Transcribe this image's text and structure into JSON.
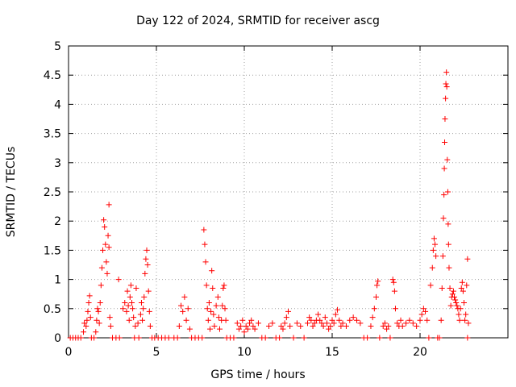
{
  "chart_data": {
    "type": "scatter",
    "title": "Day 122 of 2024, SRMTID for receiver ascg",
    "xlabel": "GPS time / hours",
    "ylabel": "SRMTID / TECUs",
    "xlim": [
      0,
      25
    ],
    "ylim": [
      0,
      5
    ],
    "xticks": [
      "0",
      "5",
      "10",
      "15",
      "20"
    ],
    "yticks": [
      "0",
      "0.5",
      "1",
      "1.5",
      "2",
      "2.5",
      "3",
      "3.5",
      "4",
      "4.5",
      "5"
    ],
    "grid": true,
    "marker": "+",
    "series": [
      {
        "name": "SRMTID",
        "color": "#ff0000",
        "points": [
          [
            0.1,
            0
          ],
          [
            0.25,
            0
          ],
          [
            0.4,
            0
          ],
          [
            0.55,
            0
          ],
          [
            0.7,
            0
          ],
          [
            0.85,
            0.1
          ],
          [
            0.9,
            0.25
          ],
          [
            1.0,
            0.2
          ],
          [
            1.05,
            0.3
          ],
          [
            1.1,
            0.45
          ],
          [
            1.15,
            0.6
          ],
          [
            1.2,
            0.72
          ],
          [
            1.25,
            0.35
          ],
          [
            1.3,
            0
          ],
          [
            1.45,
            0
          ],
          [
            1.55,
            0.1
          ],
          [
            1.6,
            0.3
          ],
          [
            1.65,
            0.5
          ],
          [
            1.7,
            0.45
          ],
          [
            1.75,
            0.25
          ],
          [
            1.8,
            0.6
          ],
          [
            1.85,
            0.9
          ],
          [
            1.9,
            1.2
          ],
          [
            1.95,
            1.5
          ],
          [
            2.0,
            2.02
          ],
          [
            2.05,
            1.9
          ],
          [
            2.1,
            1.6
          ],
          [
            2.15,
            1.3
          ],
          [
            2.2,
            1.1
          ],
          [
            2.25,
            1.75
          ],
          [
            2.3,
            1.55
          ],
          [
            2.35,
            0.35
          ],
          [
            2.4,
            0.2
          ],
          [
            2.3,
            2.28
          ],
          [
            2.5,
            0
          ],
          [
            2.7,
            0
          ],
          [
            2.85,
            1.0
          ],
          [
            2.9,
            0
          ],
          [
            3.1,
            0.5
          ],
          [
            3.2,
            0.6
          ],
          [
            3.3,
            0.45
          ],
          [
            3.35,
            0.8
          ],
          [
            3.4,
            0.55
          ],
          [
            3.45,
            0.3
          ],
          [
            3.5,
            0.7
          ],
          [
            3.55,
            0.9
          ],
          [
            3.6,
            0.6
          ],
          [
            3.65,
            0.5
          ],
          [
            3.7,
            0.35
          ],
          [
            3.75,
            0
          ],
          [
            3.8,
            0.2
          ],
          [
            3.85,
            0.85
          ],
          [
            3.95,
            0.25
          ],
          [
            4.0,
            0
          ],
          [
            4.1,
            0.4
          ],
          [
            4.15,
            0.6
          ],
          [
            4.2,
            0.3
          ],
          [
            4.25,
            0.5
          ],
          [
            4.3,
            0.7
          ],
          [
            4.35,
            1.1
          ],
          [
            4.4,
            1.35
          ],
          [
            4.45,
            1.5
          ],
          [
            4.5,
            1.25
          ],
          [
            4.55,
            0.8
          ],
          [
            4.6,
            0.45
          ],
          [
            4.65,
            0.2
          ],
          [
            4.75,
            0
          ],
          [
            4.9,
            0
          ],
          [
            5.1,
            0
          ],
          [
            5.3,
            0
          ],
          [
            5.5,
            0
          ],
          [
            5.7,
            0
          ],
          [
            6.0,
            0
          ],
          [
            6.2,
            0
          ],
          [
            6.3,
            0.2
          ],
          [
            6.4,
            0.55
          ],
          [
            6.5,
            0.45
          ],
          [
            6.6,
            0.7
          ],
          [
            6.7,
            0.3
          ],
          [
            6.8,
            0.5
          ],
          [
            6.9,
            0.15
          ],
          [
            7.0,
            0
          ],
          [
            7.2,
            0
          ],
          [
            7.4,
            0
          ],
          [
            7.6,
            0
          ],
          [
            7.7,
            1.85
          ],
          [
            7.75,
            1.6
          ],
          [
            7.8,
            1.3
          ],
          [
            7.85,
            0.9
          ],
          [
            7.9,
            0.5
          ],
          [
            7.95,
            0.3
          ],
          [
            8.0,
            0.6
          ],
          [
            8.05,
            0.15
          ],
          [
            8.1,
            0.45
          ],
          [
            8.15,
            1.15
          ],
          [
            8.2,
            0.85
          ],
          [
            8.25,
            0.4
          ],
          [
            8.3,
            0.2
          ],
          [
            8.4,
            0.55
          ],
          [
            8.5,
            0.7
          ],
          [
            8.55,
            0.35
          ],
          [
            8.6,
            0.15
          ],
          [
            8.7,
            0.3
          ],
          [
            8.75,
            0.55
          ],
          [
            8.8,
            0.85
          ],
          [
            8.85,
            0.9
          ],
          [
            8.9,
            0.5
          ],
          [
            8.95,
            0.3
          ],
          [
            9.0,
            0
          ],
          [
            9.2,
            0
          ],
          [
            9.4,
            0
          ],
          [
            9.6,
            0.25
          ],
          [
            9.7,
            0.15
          ],
          [
            9.8,
            0.2
          ],
          [
            9.9,
            0.3
          ],
          [
            10.0,
            0.1
          ],
          [
            10.1,
            0.2
          ],
          [
            10.2,
            0.15
          ],
          [
            10.3,
            0.25
          ],
          [
            10.4,
            0.3
          ],
          [
            10.5,
            0.2
          ],
          [
            10.6,
            0.15
          ],
          [
            10.8,
            0.25
          ],
          [
            11.0,
            0
          ],
          [
            11.2,
            0
          ],
          [
            11.4,
            0.2
          ],
          [
            11.6,
            0.25
          ],
          [
            11.8,
            0
          ],
          [
            12.0,
            0
          ],
          [
            12.1,
            0.2
          ],
          [
            12.2,
            0.15
          ],
          [
            12.3,
            0.25
          ],
          [
            12.4,
            0.35
          ],
          [
            12.5,
            0.45
          ],
          [
            12.6,
            0.2
          ],
          [
            12.8,
            0
          ],
          [
            13.0,
            0.25
          ],
          [
            13.2,
            0.2
          ],
          [
            13.4,
            0
          ],
          [
            13.6,
            0.25
          ],
          [
            13.7,
            0.35
          ],
          [
            13.8,
            0.3
          ],
          [
            13.9,
            0.2
          ],
          [
            14.0,
            0.25
          ],
          [
            14.1,
            0.3
          ],
          [
            14.2,
            0.4
          ],
          [
            14.3,
            0.3
          ],
          [
            14.4,
            0.25
          ],
          [
            14.5,
            0.2
          ],
          [
            14.6,
            0.35
          ],
          [
            14.7,
            0.25
          ],
          [
            14.8,
            0.15
          ],
          [
            14.9,
            0.2
          ],
          [
            15.0,
            0.3
          ],
          [
            15.1,
            0.25
          ],
          [
            15.2,
            0.4
          ],
          [
            15.3,
            0.48
          ],
          [
            15.4,
            0.3
          ],
          [
            15.5,
            0.2
          ],
          [
            15.6,
            0.25
          ],
          [
            15.8,
            0.2
          ],
          [
            16.0,
            0.3
          ],
          [
            16.2,
            0.35
          ],
          [
            16.4,
            0.3
          ],
          [
            16.6,
            0.25
          ],
          [
            16.8,
            0
          ],
          [
            17.0,
            0
          ],
          [
            17.2,
            0.2
          ],
          [
            17.3,
            0.35
          ],
          [
            17.4,
            0.5
          ],
          [
            17.5,
            0.7
          ],
          [
            17.55,
            0.9
          ],
          [
            17.6,
            0.97
          ],
          [
            17.7,
            0
          ],
          [
            17.9,
            0.2
          ],
          [
            18.0,
            0.25
          ],
          [
            18.1,
            0.15
          ],
          [
            18.2,
            0.2
          ],
          [
            18.3,
            0
          ],
          [
            18.45,
            1.0
          ],
          [
            18.5,
            0.95
          ],
          [
            18.55,
            0.8
          ],
          [
            18.6,
            0.5
          ],
          [
            18.7,
            0.25
          ],
          [
            18.8,
            0.2
          ],
          [
            18.9,
            0.3
          ],
          [
            19.0,
            0.2
          ],
          [
            19.2,
            0.25
          ],
          [
            19.4,
            0.3
          ],
          [
            19.6,
            0.25
          ],
          [
            19.8,
            0.2
          ],
          [
            20.0,
            0.3
          ],
          [
            20.1,
            0.4
          ],
          [
            20.2,
            0.5
          ],
          [
            20.3,
            0.45
          ],
          [
            20.4,
            0.3
          ],
          [
            20.5,
            0
          ],
          [
            20.6,
            0.9
          ],
          [
            20.7,
            1.2
          ],
          [
            20.75,
            1.5
          ],
          [
            20.8,
            1.7
          ],
          [
            20.85,
            1.6
          ],
          [
            20.9,
            1.4
          ],
          [
            21.0,
            0
          ],
          [
            21.1,
            0
          ],
          [
            21.2,
            0.3
          ],
          [
            21.25,
            0.85
          ],
          [
            21.3,
            1.4
          ],
          [
            21.33,
            2.05
          ],
          [
            21.36,
            2.45
          ],
          [
            21.38,
            2.9
          ],
          [
            21.4,
            3.35
          ],
          [
            21.42,
            3.75
          ],
          [
            21.45,
            4.1
          ],
          [
            21.47,
            4.35
          ],
          [
            21.5,
            4.55
          ],
          [
            21.52,
            4.3
          ],
          [
            21.55,
            3.05
          ],
          [
            21.58,
            2.5
          ],
          [
            21.6,
            1.95
          ],
          [
            21.62,
            1.6
          ],
          [
            21.65,
            1.2
          ],
          [
            21.7,
            0.85
          ],
          [
            21.75,
            0.55
          ],
          [
            21.8,
            0.7
          ],
          [
            21.85,
            0.75
          ],
          [
            21.9,
            0.8
          ],
          [
            21.95,
            0.7
          ],
          [
            22.0,
            0.65
          ],
          [
            22.05,
            0.6
          ],
          [
            22.1,
            0.55
          ],
          [
            22.15,
            0.5
          ],
          [
            22.2,
            0.4
          ],
          [
            22.25,
            0.3
          ],
          [
            22.3,
            0.5
          ],
          [
            22.35,
            0.85
          ],
          [
            22.4,
            0.95
          ],
          [
            22.45,
            0.8
          ],
          [
            22.5,
            0.6
          ],
          [
            22.55,
            0.3
          ],
          [
            22.6,
            0.4
          ],
          [
            22.65,
            0.9
          ],
          [
            22.7,
            1.35
          ],
          [
            22.75,
            0.25
          ],
          [
            22.7,
            0
          ]
        ]
      }
    ]
  }
}
